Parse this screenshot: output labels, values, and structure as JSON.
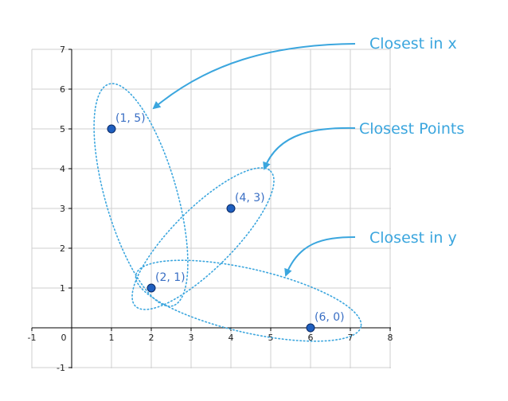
{
  "chart_data": {
    "type": "scatter",
    "xlim": [
      -1,
      8
    ],
    "ylim": [
      -1,
      7
    ],
    "x_ticks": [
      "-1",
      "0",
      "1",
      "2",
      "3",
      "4",
      "5",
      "6",
      "7",
      "8"
    ],
    "y_ticks": [
      "-1",
      "1",
      "2",
      "3",
      "4",
      "5",
      "6",
      "7"
    ],
    "grid": true,
    "points": [
      {
        "x": 1,
        "y": 5,
        "label": "(1, 5)"
      },
      {
        "x": 4,
        "y": 3,
        "label": "(4, 3)"
      },
      {
        "x": 2,
        "y": 1,
        "label": "(2, 1)"
      },
      {
        "x": 6,
        "y": 0,
        "label": "(6, 0)"
      }
    ],
    "groupings": [
      {
        "members": [
          "(1, 5)",
          "(2, 1)"
        ],
        "label": "Closest in x"
      },
      {
        "members": [
          "(2, 1)",
          "(4, 3)"
        ],
        "label": "Closest Points"
      },
      {
        "members": [
          "(2, 1)",
          "(6, 0)"
        ],
        "label": "Closest in y"
      }
    ]
  },
  "colors": {
    "point_fill": "#1f5fbf",
    "point_stroke": "#0a2a66",
    "label": "#3a6fc4",
    "annotation": "#3ba6de",
    "grid": "#cfcfcf",
    "axis": "#000000"
  }
}
